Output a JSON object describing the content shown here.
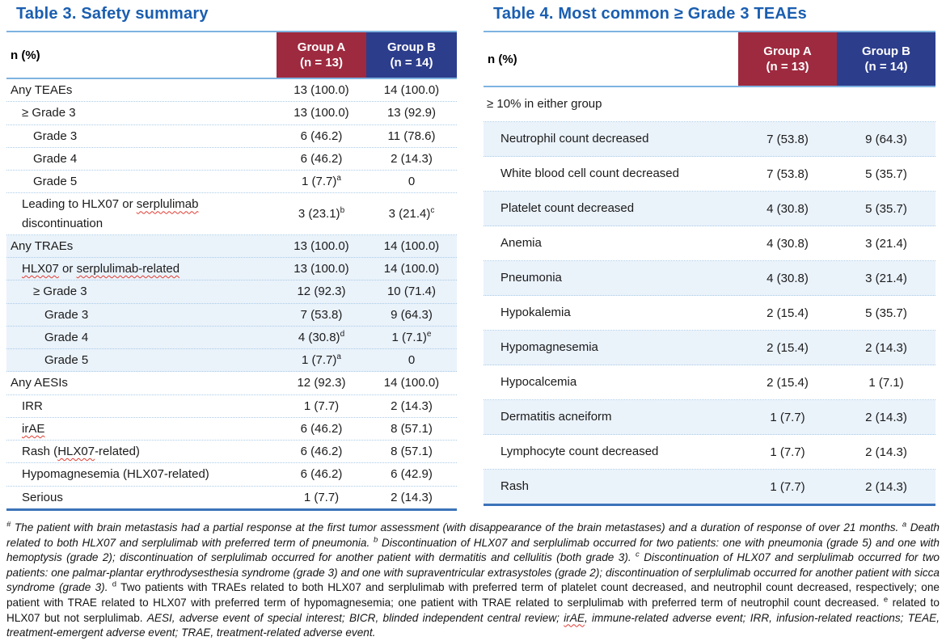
{
  "colors": {
    "title_blue": "#1A5EB0",
    "group_a_red": "#9E2A3F",
    "group_b_navy": "#2C3D8C",
    "stripe_light_blue": "#EAF2FA",
    "rule_light_blue": "#7EB3E0",
    "rule_dark_blue": "#3C74B8",
    "squiggle_red": "#E03C31"
  },
  "tables": [
    {
      "id": "table3",
      "title": "Table 3. Safety summary",
      "col_label": "n (%)",
      "groups": [
        {
          "name": "Group A",
          "n": "(n = 13)",
          "color": "#9E2A3F"
        },
        {
          "name": "Group B",
          "n": "(n = 14)",
          "color": "#2C3D8C"
        }
      ],
      "rows": [
        {
          "label": "Any TEAEs",
          "indent": 0,
          "a": "13 (100.0)",
          "b": "14 (100.0)"
        },
        {
          "label": "≥ Grade 3",
          "indent": 1,
          "a": "13 (100.0)",
          "b": "13 (92.9)"
        },
        {
          "label": "Grade 3",
          "indent": 2,
          "a": "6 (46.2)",
          "b": "11 (78.6)"
        },
        {
          "label": "Grade 4",
          "indent": 2,
          "a": "6 (46.2)",
          "b": "2 (14.3)"
        },
        {
          "label": "Grade 5",
          "indent": 2,
          "a": "1 (7.7)",
          "a_sup": "a",
          "b": "0"
        },
        {
          "label": "Leading to HLX07 or serplulimab\ndiscontinuation",
          "indent": 1,
          "squiggle": [
            "serplulimab"
          ],
          "a": "3 (23.1)",
          "a_sup": "b",
          "b": "3 (21.4)",
          "b_sup": "c"
        },
        {
          "label": "Any TRAEs",
          "indent": 0,
          "a": "13 (100.0)",
          "b": "14 (100.0)",
          "shade": true
        },
        {
          "label": "HLX07 or serplulimab-related",
          "indent": 1,
          "squiggle": [
            "HLX07",
            "serplulimab-related"
          ],
          "a": "13 (100.0)",
          "b": "14 (100.0)",
          "shade": true
        },
        {
          "label": "≥ Grade 3",
          "indent": 2,
          "a": "12 (92.3)",
          "b": "10 (71.4)",
          "shade": true
        },
        {
          "label": "Grade 3",
          "indent": 3,
          "a": "7 (53.8)",
          "b": "9 (64.3)",
          "shade": true
        },
        {
          "label": "Grade 4",
          "indent": 3,
          "a": "4 (30.8)",
          "a_sup": "d",
          "b": "1 (7.1)",
          "b_sup": "e",
          "shade": true
        },
        {
          "label": "Grade 5",
          "indent": 3,
          "a": "1 (7.7)",
          "a_sup": "a",
          "b": "0",
          "shade": true
        },
        {
          "label": "Any AESIs",
          "indent": 0,
          "a": "12 (92.3)",
          "b": "14 (100.0)"
        },
        {
          "label": "IRR",
          "indent": 1,
          "a": "1 (7.7)",
          "b": "2 (14.3)"
        },
        {
          "label": "irAE",
          "indent": 1,
          "squiggle": [
            "irAE"
          ],
          "a": "6 (46.2)",
          "b": "8 (57.1)"
        },
        {
          "label": "Rash (HLX07-related)",
          "indent": 1,
          "squiggle": [
            "HLX07"
          ],
          "a": "6 (46.2)",
          "b": "8 (57.1)"
        },
        {
          "label": "Hypomagnesemia (HLX07-related)",
          "indent": 1,
          "a": "6 (46.2)",
          "b": "6 (42.9)"
        },
        {
          "label": "Serious",
          "indent": 1,
          "a": "1 (7.7)",
          "b": "2 (14.3)"
        }
      ]
    },
    {
      "id": "table4",
      "title": "Table 4. Most common ≥ Grade 3 TEAEs",
      "col_label": "n (%)",
      "groups": [
        {
          "name": "Group A",
          "n": "(n = 13)",
          "color": "#9E2A3F"
        },
        {
          "name": "Group B",
          "n": "(n = 14)",
          "color": "#2C3D8C"
        }
      ],
      "rows": [
        {
          "label": "≥ 10% in either group",
          "type": "section",
          "indent": 0
        },
        {
          "label": "Neutrophil count decreased",
          "indent": 1,
          "a": "7 (53.8)",
          "b": "9 (64.3)",
          "shade": true
        },
        {
          "label": "White blood cell count decreased",
          "indent": 1,
          "a": "7 (53.8)",
          "b": "5 (35.7)"
        },
        {
          "label": "Platelet count decreased",
          "indent": 1,
          "a": "4 (30.8)",
          "b": "5 (35.7)",
          "shade": true
        },
        {
          "label": "Anemia",
          "indent": 1,
          "a": "4 (30.8)",
          "b": "3 (21.4)"
        },
        {
          "label": "Pneumonia",
          "indent": 1,
          "a": "4 (30.8)",
          "b": "3 (21.4)",
          "shade": true
        },
        {
          "label": "Hypokalemia",
          "indent": 1,
          "a": "2 (15.4)",
          "b": "5 (35.7)"
        },
        {
          "label": "Hypomagnesemia",
          "indent": 1,
          "a": "2 (15.4)",
          "b": "2 (14.3)",
          "shade": true
        },
        {
          "label": "Hypocalcemia",
          "indent": 1,
          "a": "2 (15.4)",
          "b": "1 (7.1)"
        },
        {
          "label": "Dermatitis acneiform",
          "indent": 1,
          "a": "1 (7.7)",
          "b": "2 (14.3)",
          "shade": true
        },
        {
          "label": "Lymphocyte count decreased",
          "indent": 1,
          "a": "1 (7.7)",
          "b": "2 (14.3)"
        },
        {
          "label": "Rash",
          "indent": 1,
          "a": "1 (7.7)",
          "b": "2 (14.3)",
          "shade": true
        }
      ]
    }
  ],
  "footnote": {
    "segments": [
      {
        "t": "#",
        "sup": true
      },
      {
        "t": " The patient with brain metastasis had a partial response at the first tumor assessment (with disappearance of the brain metastases) and a duration of response of over 21 months. "
      },
      {
        "t": "a",
        "sup": true
      },
      {
        "t": " Death related to both HLX07 and serplulimab with preferred term of pneumonia. "
      },
      {
        "t": "b",
        "sup": true
      },
      {
        "t": " Discontinuation of HLX07 and serplulimab occurred for two patients: one with pneumonia (grade 5) and one with hemoptysis (grade 2); discontinuation of serplulimab occurred for another patient with dermatitis and cellulitis (both grade 3). "
      },
      {
        "t": "c",
        "sup": true
      },
      {
        "t": " Discontinuation of HLX07 and serplulimab occurred for two patients: one palmar-plantar erythrodysesthesia syndrome (grade 3) and one with supraventricular extrasystoles (grade 2); discontinuation of serplulimab occurred for another patient with sicca syndrome (grade 3). "
      },
      {
        "t": "d",
        "sup": true,
        "roman": true
      },
      {
        "t": " Two patients with TRAEs related to both HLX07 and serplulimab with preferred term of platelet count decreased, and neutrophil count decreased, respectively; one patient with TRAE related to HLX07 with preferred term of hypomagnesemia; one patient with TRAE related to serplulimab with preferred term of neutrophil count decreased. ",
        "roman": true
      },
      {
        "t": "e",
        "sup": true,
        "roman": true
      },
      {
        "t": " related to HLX07 but not serplulimab. ",
        "roman": true
      },
      {
        "t": "AESI, adverse event of special interest; BICR, blinded independent central review; "
      },
      {
        "t": "irAE",
        "squiggle": true
      },
      {
        "t": ", immune-related adverse event; IRR, infusion-related reactions; TEAE, treatment-emergent adverse event; TRAE, treatment-related adverse event."
      }
    ]
  }
}
